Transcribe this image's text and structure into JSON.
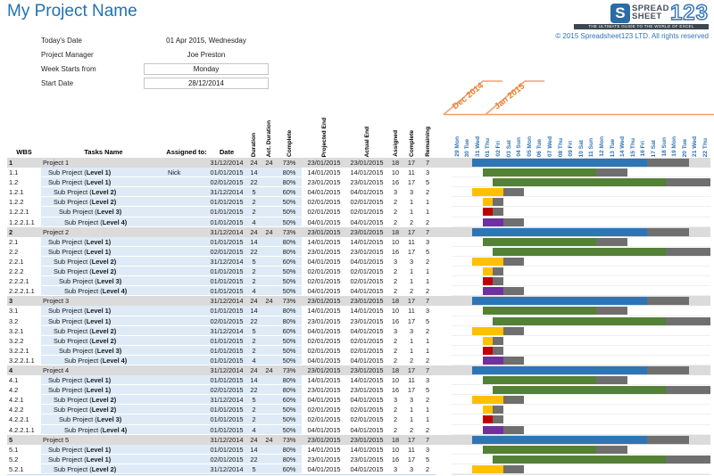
{
  "title": "My Project Name",
  "info": {
    "fields": [
      {
        "label": "Today's Date",
        "value": "01 Apr 2015, Wednesday",
        "boxed": false
      },
      {
        "label": "Project Manager",
        "value": "Joe Preston",
        "boxed": false
      },
      {
        "label": "Week Starts from",
        "value": "Monday",
        "boxed": true
      },
      {
        "label": "Start Date",
        "value": "28/12/2014",
        "boxed": true
      }
    ]
  },
  "logo": {
    "mark": "S",
    "line1": "SPREAD",
    "line2": "SHEET",
    "numerals": "123",
    "tagline": "THE ULTIMATE GUIDE TO THE WORLD OF EXCEL",
    "copyright": "© 2015 Spreadsheet123 LTD. All rights reserved"
  },
  "timeline": {
    "months": [
      "Dec 2014",
      "Jan 2015"
    ],
    "days": [
      "29 Mon",
      "30 Tue",
      "31 Wed",
      "01 Thu",
      "02 Fri",
      "03 Sat",
      "04 Sun",
      "05 Mon",
      "06 Tue",
      "07 Wed",
      "08 Thu",
      "09 Fri",
      "10 Sat",
      "11 Sun",
      "12 Mon",
      "13 Tue",
      "14 Wed",
      "15 Thu",
      "16 Fri",
      "17 Sat",
      "18 Sun",
      "19 Mon",
      "20 Tue",
      "21 Wed",
      "22 Thu"
    ]
  },
  "columns": [
    {
      "label": "WBS",
      "rotated": false
    },
    {
      "label": "Tasks Name",
      "rotated": false
    },
    {
      "label": "Assigned to:",
      "rotated": false
    },
    {
      "label": "Date",
      "rotated": false
    },
    {
      "label": "Duration",
      "rotated": true
    },
    {
      "label": "Act. Duration",
      "rotated": true
    },
    {
      "label": "Complete",
      "rotated": true
    },
    {
      "label": "Projected End",
      "rotated": true
    },
    {
      "label": "Actual End",
      "rotated": true
    },
    {
      "label": "Assigned",
      "rotated": true
    },
    {
      "label": "Complete",
      "rotated": true
    },
    {
      "label": "Remaining",
      "rotated": true
    }
  ],
  "colors": {
    "accent_blue": "#2E74B5",
    "orange": "#ED7D31",
    "project_band": "#DBDBDB",
    "sub_band": "#DEEBF7",
    "bars": {
      "blue": "#2E75B6",
      "green": "#538135",
      "yellow": "#FFC000",
      "red": "#C00000",
      "purple": "#7030A0",
      "remaining": "#6F6F6F"
    }
  },
  "rows": [
    {
      "wbs": "1",
      "type": "project",
      "level": 0,
      "name": "Project 1",
      "nameBold": "",
      "assigned": "",
      "date": "31/12/2014",
      "dur": "24",
      "actDur": "24",
      "pct": "73%",
      "projEnd": "23/01/2015",
      "actEnd": "23/01/2015",
      "asg": "18",
      "cmp": "17",
      "rem": "7",
      "bar": {
        "color": "blue",
        "start": 2,
        "done": 16.9,
        "total": 20.9
      }
    },
    {
      "wbs": "1.1",
      "type": "sub",
      "level": 1,
      "name": "Sub Project (",
      "nameBold": "Level 1)",
      "assigned": "Nick",
      "date": "01/01/2015",
      "dur": "14",
      "actDur": "",
      "pct": "80%",
      "projEnd": "14/01/2015",
      "actEnd": "14/01/2015",
      "asg": "10",
      "cmp": "11",
      "rem": "3",
      "bar": {
        "color": "green",
        "start": 3,
        "done": 11,
        "total": 14
      }
    },
    {
      "wbs": "1.2",
      "type": "sub",
      "level": 1,
      "name": "Sub Project (",
      "nameBold": "Level 1)",
      "assigned": "",
      "date": "02/01/2015",
      "dur": "22",
      "actDur": "",
      "pct": "80%",
      "projEnd": "23/01/2015",
      "actEnd": "23/01/2015",
      "asg": "16",
      "cmp": "17",
      "rem": "5",
      "bar": {
        "color": "green",
        "start": 4,
        "done": 16.7,
        "total": 21
      }
    },
    {
      "wbs": "1.2.1",
      "type": "sub",
      "level": 2,
      "name": "Sub Project (",
      "nameBold": "Level 2)",
      "assigned": "",
      "date": "31/12/2014",
      "dur": "5",
      "actDur": "",
      "pct": "60%",
      "projEnd": "04/01/2015",
      "actEnd": "04/01/2015",
      "asg": "3",
      "cmp": "3",
      "rem": "2",
      "bar": {
        "color": "yellow",
        "start": 2,
        "done": 3,
        "total": 5
      }
    },
    {
      "wbs": "1.2.2",
      "type": "sub",
      "level": 2,
      "name": "Sub Project (",
      "nameBold": "Level 2)",
      "assigned": "",
      "date": "01/01/2015",
      "dur": "2",
      "actDur": "",
      "pct": "50%",
      "projEnd": "02/01/2015",
      "actEnd": "02/01/2015",
      "asg": "2",
      "cmp": "1",
      "rem": "1",
      "bar": {
        "color": "yellow",
        "start": 3,
        "done": 1,
        "total": 2
      }
    },
    {
      "wbs": "1.2.2.1",
      "type": "sub",
      "level": 3,
      "name": "Sub Project (",
      "nameBold": "Level 3)",
      "assigned": "",
      "date": "01/01/2015",
      "dur": "2",
      "actDur": "",
      "pct": "50%",
      "projEnd": "02/01/2015",
      "actEnd": "02/01/2015",
      "asg": "2",
      "cmp": "1",
      "rem": "1",
      "bar": {
        "color": "red",
        "start": 3,
        "done": 1,
        "total": 2
      }
    },
    {
      "wbs": "1.2.2.1.1",
      "type": "sub",
      "level": 4,
      "name": "Sub Project (",
      "nameBold": "Level 4)",
      "assigned": "",
      "date": "01/01/2015",
      "dur": "4",
      "actDur": "",
      "pct": "50%",
      "projEnd": "04/01/2015",
      "actEnd": "04/01/2015",
      "asg": "2",
      "cmp": "2",
      "rem": "2",
      "bar": {
        "color": "purple",
        "start": 3,
        "done": 2,
        "total": 4
      }
    },
    {
      "wbs": "2",
      "type": "project",
      "level": 0,
      "name": "Project 2",
      "nameBold": "",
      "assigned": "",
      "date": "31/12/2014",
      "dur": "24",
      "actDur": "24",
      "pct": "73%",
      "projEnd": "23/01/2015",
      "actEnd": "23/01/2015",
      "asg": "18",
      "cmp": "17",
      "rem": "7",
      "bar": {
        "color": "blue",
        "start": 2,
        "done": 16.9,
        "total": 20.9
      }
    },
    {
      "wbs": "2.1",
      "type": "sub",
      "level": 1,
      "name": "Sub Project (",
      "nameBold": "Level 1)",
      "assigned": "",
      "date": "01/01/2015",
      "dur": "14",
      "actDur": "",
      "pct": "80%",
      "projEnd": "14/01/2015",
      "actEnd": "14/01/2015",
      "asg": "10",
      "cmp": "11",
      "rem": "3",
      "bar": {
        "color": "green",
        "start": 3,
        "done": 11,
        "total": 14
      }
    },
    {
      "wbs": "2.2",
      "type": "sub",
      "level": 1,
      "name": "Sub Project (",
      "nameBold": "Level 1)",
      "assigned": "",
      "date": "02/01/2015",
      "dur": "22",
      "actDur": "",
      "pct": "80%",
      "projEnd": "23/01/2015",
      "actEnd": "23/01/2015",
      "asg": "16",
      "cmp": "17",
      "rem": "5",
      "bar": {
        "color": "green",
        "start": 4,
        "done": 16.7,
        "total": 21
      }
    },
    {
      "wbs": "2.2.1",
      "type": "sub",
      "level": 2,
      "name": "Sub Project (",
      "nameBold": "Level 2)",
      "assigned": "",
      "date": "31/12/2014",
      "dur": "5",
      "actDur": "",
      "pct": "60%",
      "projEnd": "04/01/2015",
      "actEnd": "04/01/2015",
      "asg": "3",
      "cmp": "3",
      "rem": "2",
      "bar": {
        "color": "yellow",
        "start": 2,
        "done": 3,
        "total": 5
      }
    },
    {
      "wbs": "2.2.2",
      "type": "sub",
      "level": 2,
      "name": "Sub Project (",
      "nameBold": "Level 2)",
      "assigned": "",
      "date": "01/01/2015",
      "dur": "2",
      "actDur": "",
      "pct": "50%",
      "projEnd": "02/01/2015",
      "actEnd": "02/01/2015",
      "asg": "2",
      "cmp": "1",
      "rem": "1",
      "bar": {
        "color": "yellow",
        "start": 3,
        "done": 1,
        "total": 2
      }
    },
    {
      "wbs": "2.2.2.1",
      "type": "sub",
      "level": 3,
      "name": "Sub Project (",
      "nameBold": "Level 3)",
      "assigned": "",
      "date": "01/01/2015",
      "dur": "2",
      "actDur": "",
      "pct": "50%",
      "projEnd": "02/01/2015",
      "actEnd": "02/01/2015",
      "asg": "2",
      "cmp": "1",
      "rem": "1",
      "bar": {
        "color": "red",
        "start": 3,
        "done": 1,
        "total": 2
      }
    },
    {
      "wbs": "2.2.2.1.1",
      "type": "sub",
      "level": 4,
      "name": "Sub Project (",
      "nameBold": "Level 4)",
      "assigned": "",
      "date": "01/01/2015",
      "dur": "4",
      "actDur": "",
      "pct": "50%",
      "projEnd": "04/01/2015",
      "actEnd": "04/01/2015",
      "asg": "2",
      "cmp": "2",
      "rem": "2",
      "bar": {
        "color": "purple",
        "start": 3,
        "done": 2,
        "total": 4
      }
    },
    {
      "wbs": "3",
      "type": "project",
      "level": 0,
      "name": "Project 3",
      "nameBold": "",
      "assigned": "",
      "date": "31/12/2014",
      "dur": "24",
      "actDur": "24",
      "pct": "73%",
      "projEnd": "23/01/2015",
      "actEnd": "23/01/2015",
      "asg": "18",
      "cmp": "17",
      "rem": "7",
      "bar": {
        "color": "blue",
        "start": 2,
        "done": 16.9,
        "total": 20.9
      }
    },
    {
      "wbs": "3.1",
      "type": "sub",
      "level": 1,
      "name": "Sub Project (",
      "nameBold": "Level 1)",
      "assigned": "",
      "date": "01/01/2015",
      "dur": "14",
      "actDur": "",
      "pct": "80%",
      "projEnd": "14/01/2015",
      "actEnd": "14/01/2015",
      "asg": "10",
      "cmp": "11",
      "rem": "3",
      "bar": {
        "color": "green",
        "start": 3,
        "done": 11,
        "total": 14
      }
    },
    {
      "wbs": "3.2",
      "type": "sub",
      "level": 1,
      "name": "Sub Project (",
      "nameBold": "Level 1)",
      "assigned": "",
      "date": "02/01/2015",
      "dur": "22",
      "actDur": "",
      "pct": "80%",
      "projEnd": "23/01/2015",
      "actEnd": "23/01/2015",
      "asg": "16",
      "cmp": "17",
      "rem": "5",
      "bar": {
        "color": "green",
        "start": 4,
        "done": 16.7,
        "total": 21
      }
    },
    {
      "wbs": "3.2.1",
      "type": "sub",
      "level": 2,
      "name": "Sub Project (",
      "nameBold": "Level 2)",
      "assigned": "",
      "date": "31/12/2014",
      "dur": "5",
      "actDur": "",
      "pct": "60%",
      "projEnd": "04/01/2015",
      "actEnd": "04/01/2015",
      "asg": "3",
      "cmp": "3",
      "rem": "2",
      "bar": {
        "color": "yellow",
        "start": 2,
        "done": 3,
        "total": 5
      }
    },
    {
      "wbs": "3.2.2",
      "type": "sub",
      "level": 2,
      "name": "Sub Project (",
      "nameBold": "Level 2)",
      "assigned": "",
      "date": "01/01/2015",
      "dur": "2",
      "actDur": "",
      "pct": "50%",
      "projEnd": "02/01/2015",
      "actEnd": "02/01/2015",
      "asg": "2",
      "cmp": "1",
      "rem": "1",
      "bar": {
        "color": "yellow",
        "start": 3,
        "done": 1,
        "total": 2
      }
    },
    {
      "wbs": "3.2.2.1",
      "type": "sub",
      "level": 3,
      "name": "Sub Project (",
      "nameBold": "Level 3)",
      "assigned": "",
      "date": "01/01/2015",
      "dur": "2",
      "actDur": "",
      "pct": "50%",
      "projEnd": "02/01/2015",
      "actEnd": "02/01/2015",
      "asg": "2",
      "cmp": "1",
      "rem": "1",
      "bar": {
        "color": "red",
        "start": 3,
        "done": 1,
        "total": 2
      }
    },
    {
      "wbs": "3.2.2.1.1",
      "type": "sub",
      "level": 4,
      "name": "Sub Project (",
      "nameBold": "Level 4)",
      "assigned": "",
      "date": "01/01/2015",
      "dur": "4",
      "actDur": "",
      "pct": "50%",
      "projEnd": "04/01/2015",
      "actEnd": "04/01/2015",
      "asg": "2",
      "cmp": "2",
      "rem": "2",
      "bar": {
        "color": "purple",
        "start": 3,
        "done": 2,
        "total": 4
      }
    },
    {
      "wbs": "4",
      "type": "project",
      "level": 0,
      "name": "Project 4",
      "nameBold": "",
      "assigned": "",
      "date": "31/12/2014",
      "dur": "24",
      "actDur": "24",
      "pct": "73%",
      "projEnd": "23/01/2015",
      "actEnd": "23/01/2015",
      "asg": "18",
      "cmp": "17",
      "rem": "7",
      "bar": {
        "color": "blue",
        "start": 2,
        "done": 16.9,
        "total": 20.9
      }
    },
    {
      "wbs": "4.1",
      "type": "sub",
      "level": 1,
      "name": "Sub Project (",
      "nameBold": "Level 1)",
      "assigned": "",
      "date": "01/01/2015",
      "dur": "14",
      "actDur": "",
      "pct": "80%",
      "projEnd": "14/01/2015",
      "actEnd": "14/01/2015",
      "asg": "10",
      "cmp": "11",
      "rem": "3",
      "bar": {
        "color": "green",
        "start": 3,
        "done": 11,
        "total": 14
      }
    },
    {
      "wbs": "4.2",
      "type": "sub",
      "level": 1,
      "name": "Sub Project (",
      "nameBold": "Level 1)",
      "assigned": "",
      "date": "02/01/2015",
      "dur": "22",
      "actDur": "",
      "pct": "80%",
      "projEnd": "23/01/2015",
      "actEnd": "23/01/2015",
      "asg": "16",
      "cmp": "17",
      "rem": "5",
      "bar": {
        "color": "green",
        "start": 4,
        "done": 16.7,
        "total": 21
      }
    },
    {
      "wbs": "4.2.1",
      "type": "sub",
      "level": 2,
      "name": "Sub Project (",
      "nameBold": "Level 2)",
      "assigned": "",
      "date": "31/12/2014",
      "dur": "5",
      "actDur": "",
      "pct": "60%",
      "projEnd": "04/01/2015",
      "actEnd": "04/01/2015",
      "asg": "3",
      "cmp": "3",
      "rem": "2",
      "bar": {
        "color": "yellow",
        "start": 2,
        "done": 3,
        "total": 5
      }
    },
    {
      "wbs": "4.2.2",
      "type": "sub",
      "level": 2,
      "name": "Sub Project (",
      "nameBold": "Level 2)",
      "assigned": "",
      "date": "01/01/2015",
      "dur": "2",
      "actDur": "",
      "pct": "50%",
      "projEnd": "02/01/2015",
      "actEnd": "02/01/2015",
      "asg": "2",
      "cmp": "1",
      "rem": "1",
      "bar": {
        "color": "yellow",
        "start": 3,
        "done": 1,
        "total": 2
      }
    },
    {
      "wbs": "4.2.2.1",
      "type": "sub",
      "level": 3,
      "name": "Sub Project (",
      "nameBold": "Level 3)",
      "assigned": "",
      "date": "01/01/2015",
      "dur": "2",
      "actDur": "",
      "pct": "50%",
      "projEnd": "02/01/2015",
      "actEnd": "02/01/2015",
      "asg": "2",
      "cmp": "1",
      "rem": "1",
      "bar": {
        "color": "red",
        "start": 3,
        "done": 1,
        "total": 2
      }
    },
    {
      "wbs": "4.2.2.1.1",
      "type": "sub",
      "level": 4,
      "name": "Sub Project (",
      "nameBold": "Level 4)",
      "assigned": "",
      "date": "01/01/2015",
      "dur": "4",
      "actDur": "",
      "pct": "50%",
      "projEnd": "04/01/2015",
      "actEnd": "04/01/2015",
      "asg": "2",
      "cmp": "2",
      "rem": "2",
      "bar": {
        "color": "purple",
        "start": 3,
        "done": 2,
        "total": 4
      }
    },
    {
      "wbs": "5",
      "type": "project",
      "level": 0,
      "name": "Project 5",
      "nameBold": "",
      "assigned": "",
      "date": "31/12/2014",
      "dur": "24",
      "actDur": "24",
      "pct": "73%",
      "projEnd": "23/01/2015",
      "actEnd": "23/01/2015",
      "asg": "18",
      "cmp": "17",
      "rem": "7",
      "bar": {
        "color": "blue",
        "start": 2,
        "done": 16.9,
        "total": 20.9
      }
    },
    {
      "wbs": "5.1",
      "type": "sub",
      "level": 1,
      "name": "Sub Project (",
      "nameBold": "Level 1)",
      "assigned": "",
      "date": "01/01/2015",
      "dur": "14",
      "actDur": "",
      "pct": "80%",
      "projEnd": "14/01/2015",
      "actEnd": "14/01/2015",
      "asg": "10",
      "cmp": "11",
      "rem": "3",
      "bar": {
        "color": "green",
        "start": 3,
        "done": 11,
        "total": 14
      }
    },
    {
      "wbs": "5.2",
      "type": "sub",
      "level": 1,
      "name": "Sub Project (",
      "nameBold": "Level 1)",
      "assigned": "",
      "date": "02/01/2015",
      "dur": "22",
      "actDur": "",
      "pct": "80%",
      "projEnd": "23/01/2015",
      "actEnd": "23/01/2015",
      "asg": "16",
      "cmp": "17",
      "rem": "5",
      "bar": {
        "color": "green",
        "start": 4,
        "done": 16.7,
        "total": 21
      }
    },
    {
      "wbs": "5.2.1",
      "type": "sub",
      "level": 2,
      "name": "Sub Project (",
      "nameBold": "Level 2)",
      "assigned": "",
      "date": "31/12/2014",
      "dur": "5",
      "actDur": "",
      "pct": "60%",
      "projEnd": "04/01/2015",
      "actEnd": "04/01/2015",
      "asg": "3",
      "cmp": "3",
      "rem": "2",
      "bar": {
        "color": "yellow",
        "start": 2,
        "done": 3,
        "total": 5
      }
    }
  ]
}
